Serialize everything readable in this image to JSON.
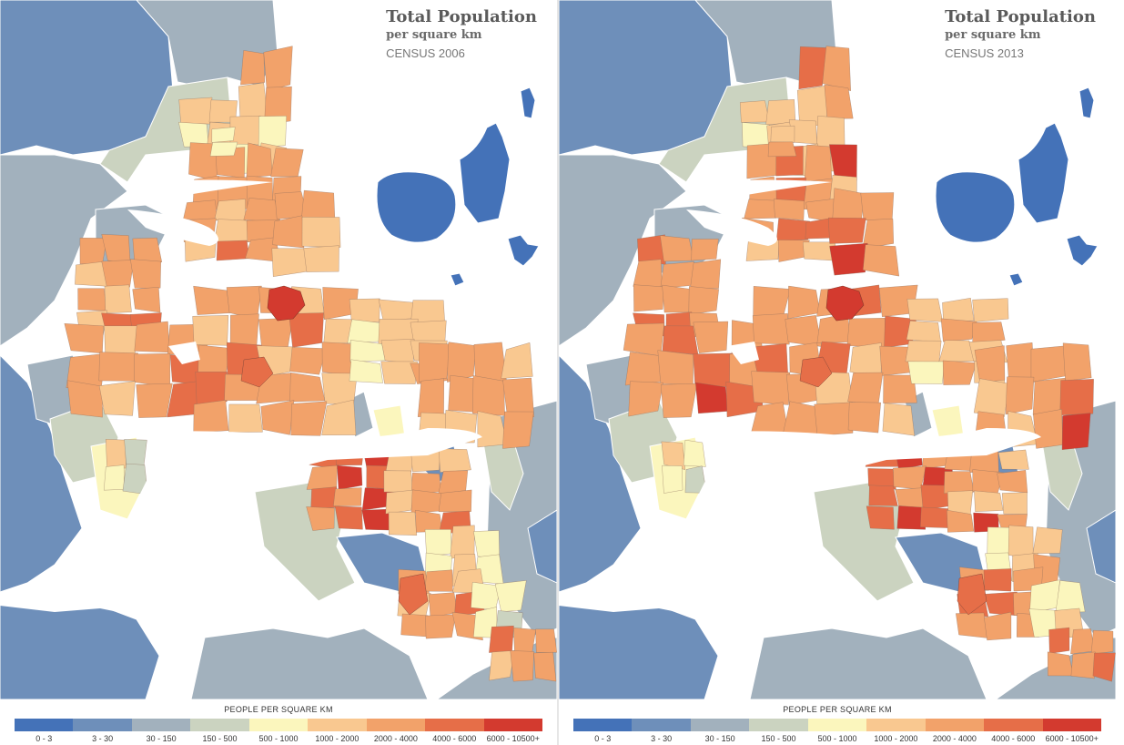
{
  "maps": [
    {
      "title": "Total Population",
      "subtitle": "per square km",
      "census": "CENSUS 2006",
      "density_shift": 0
    },
    {
      "title": "Total Population",
      "subtitle": "per square km",
      "census": "CENSUS 2013",
      "density_shift": 1
    }
  ],
  "legend": {
    "title": "PEOPLE PER SQUARE KM",
    "classes": [
      {
        "label": "0 - 3",
        "color": "#4472b8"
      },
      {
        "label": "3 - 30",
        "color": "#6e8fba"
      },
      {
        "label": "30 - 150",
        "color": "#a2b1bd"
      },
      {
        "label": "150 - 500",
        "color": "#cbd3c0"
      },
      {
        "label": "500 - 1000",
        "color": "#fbf6bd"
      },
      {
        "label": "1000 - 2000",
        "color": "#f9c890"
      },
      {
        "label": "2000 - 4000",
        "color": "#f2a26a"
      },
      {
        "label": "4000 - 6000",
        "color": "#e66e48"
      },
      {
        "label": "6000 - 10500+",
        "color": "#d33a2f"
      }
    ]
  }
}
